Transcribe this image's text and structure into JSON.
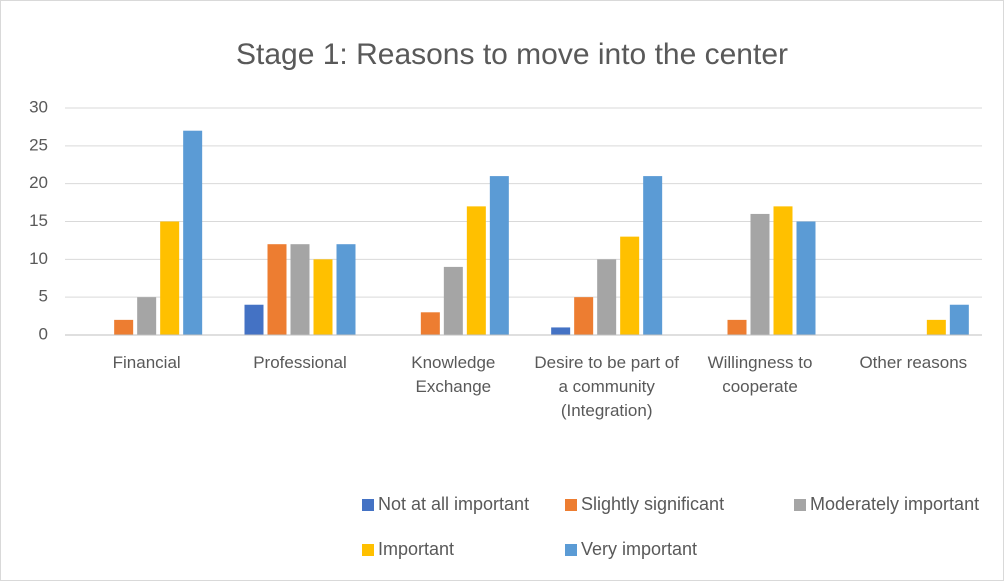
{
  "chart_data": {
    "type": "bar",
    "title": "Stage 1: Reasons to move into the center",
    "categories": [
      "Financial",
      "Professional",
      "Knowledge Exchange",
      "Desire to be part of a community (Integration)",
      "Willingness to cooperate",
      "Other reasons"
    ],
    "series": [
      {
        "name": "Not at all important",
        "color": "#4472c4",
        "values": [
          0,
          4,
          0,
          1,
          0,
          0
        ]
      },
      {
        "name": "Slightly significant",
        "color": "#ed7d31",
        "values": [
          2,
          12,
          3,
          5,
          2,
          0
        ]
      },
      {
        "name": "Moderately important",
        "color": "#a5a5a5",
        "values": [
          5,
          12,
          9,
          10,
          16,
          0
        ]
      },
      {
        "name": "Important",
        "color": "#ffc000",
        "values": [
          15,
          10,
          17,
          13,
          17,
          2
        ]
      },
      {
        "name": "Very important",
        "color": "#5b9bd5",
        "values": [
          27,
          12,
          21,
          21,
          15,
          4
        ]
      }
    ],
    "ylim": [
      0,
      30
    ],
    "yticks": [
      0,
      5,
      10,
      15,
      20,
      25,
      30
    ],
    "grid": true,
    "legend": "bottom"
  }
}
